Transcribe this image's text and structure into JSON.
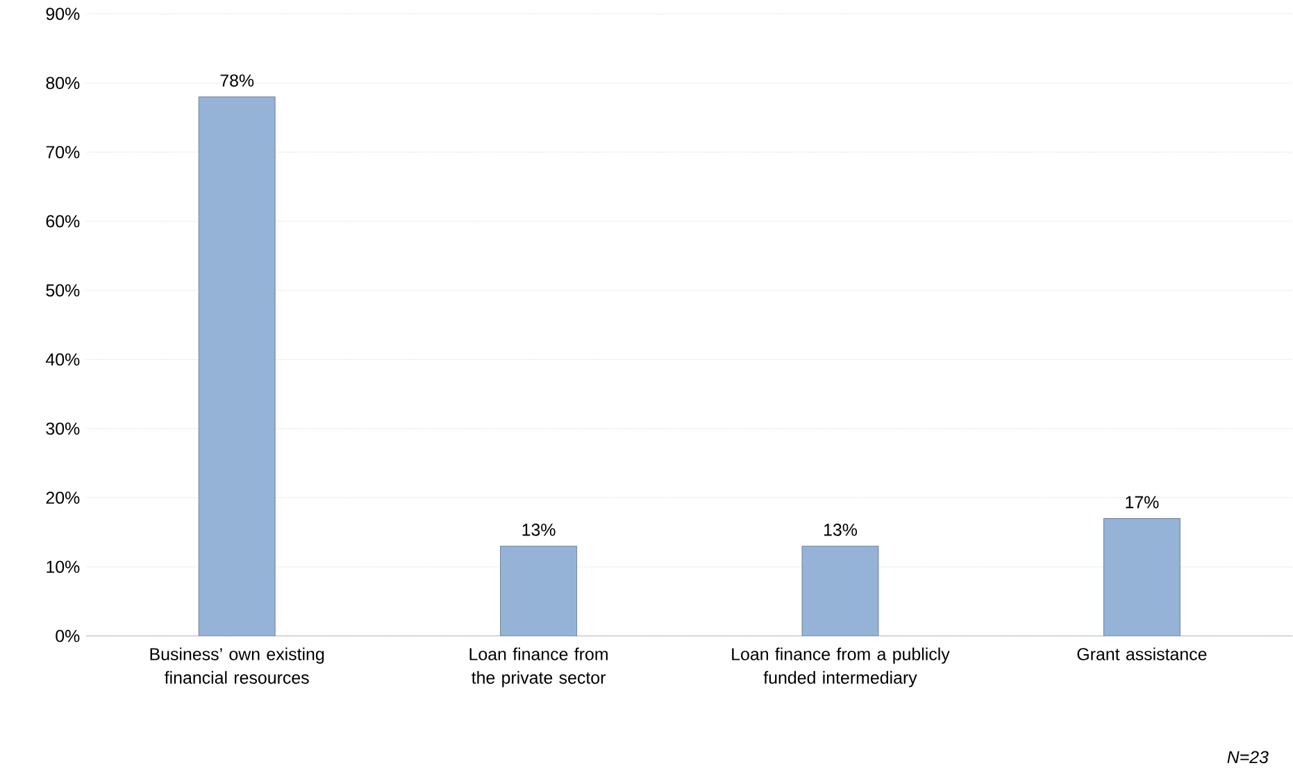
{
  "chart_data": {
    "type": "bar",
    "categories": [
      "Business’ own existing financial resources",
      "Loan finance from the private sector",
      "Loan finance from a publicly funded intermediary",
      "Grant assistance"
    ],
    "values": [
      78,
      13,
      13,
      17
    ],
    "value_labels": [
      "78%",
      "13%",
      "13%",
      "17%"
    ],
    "color": "#95b3d7",
    "ylim": [
      0,
      90
    ],
    "yticks": [
      {
        "value": 0,
        "label": "0%"
      },
      {
        "value": 10,
        "label": "10%"
      },
      {
        "value": 20,
        "label": "20%"
      },
      {
        "value": 30,
        "label": "30%"
      },
      {
        "value": 40,
        "label": "40%"
      },
      {
        "value": 50,
        "label": "50%"
      },
      {
        "value": 60,
        "label": "60%"
      },
      {
        "value": 70,
        "label": "70%"
      },
      {
        "value": 80,
        "label": "80%"
      },
      {
        "value": 90,
        "label": "90%"
      }
    ],
    "grid": "y",
    "annotations": [
      "N=23"
    ]
  }
}
